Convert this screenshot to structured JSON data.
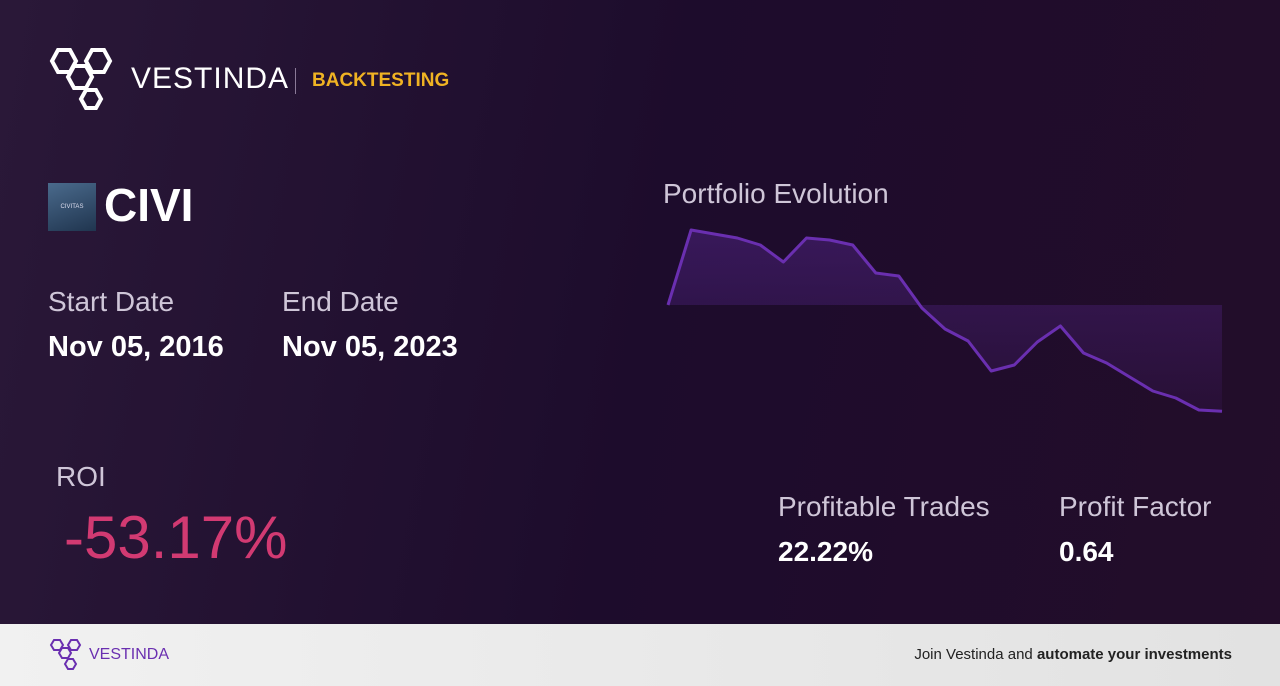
{
  "header": {
    "brand": "VESTINDA",
    "section": "BACKTESTING"
  },
  "ticker": {
    "logo_text": "CIVITAS",
    "symbol": "CIVI"
  },
  "dates": {
    "start_label": "Start Date",
    "start_value": "Nov 05, 2016",
    "end_label": "End Date",
    "end_value": "Nov 05, 2023"
  },
  "roi": {
    "label": "ROI",
    "value": "-53.17%"
  },
  "stats": [
    {
      "label": "Profitable Trades",
      "value": "22.22%"
    },
    {
      "label": "Profit Factor",
      "value": "0.64"
    }
  ],
  "chart": {
    "type": "line",
    "title": "Portfolio Evolution",
    "color": "#6a2fb0",
    "values": [
      0,
      37.5,
      35.5,
      33.5,
      30,
      21.5,
      33.5,
      32.5,
      30,
      16,
      14.5,
      -1.5,
      -12,
      -18,
      -33,
      -30,
      -18.5,
      -10.5,
      -24,
      -29,
      -36,
      -43,
      -46.5,
      -52.5,
      -53.17
    ]
  },
  "footer": {
    "brand": "VESTINDA",
    "cta_plain": "Join Vestinda and",
    "cta_bold": "automate your investments"
  }
}
